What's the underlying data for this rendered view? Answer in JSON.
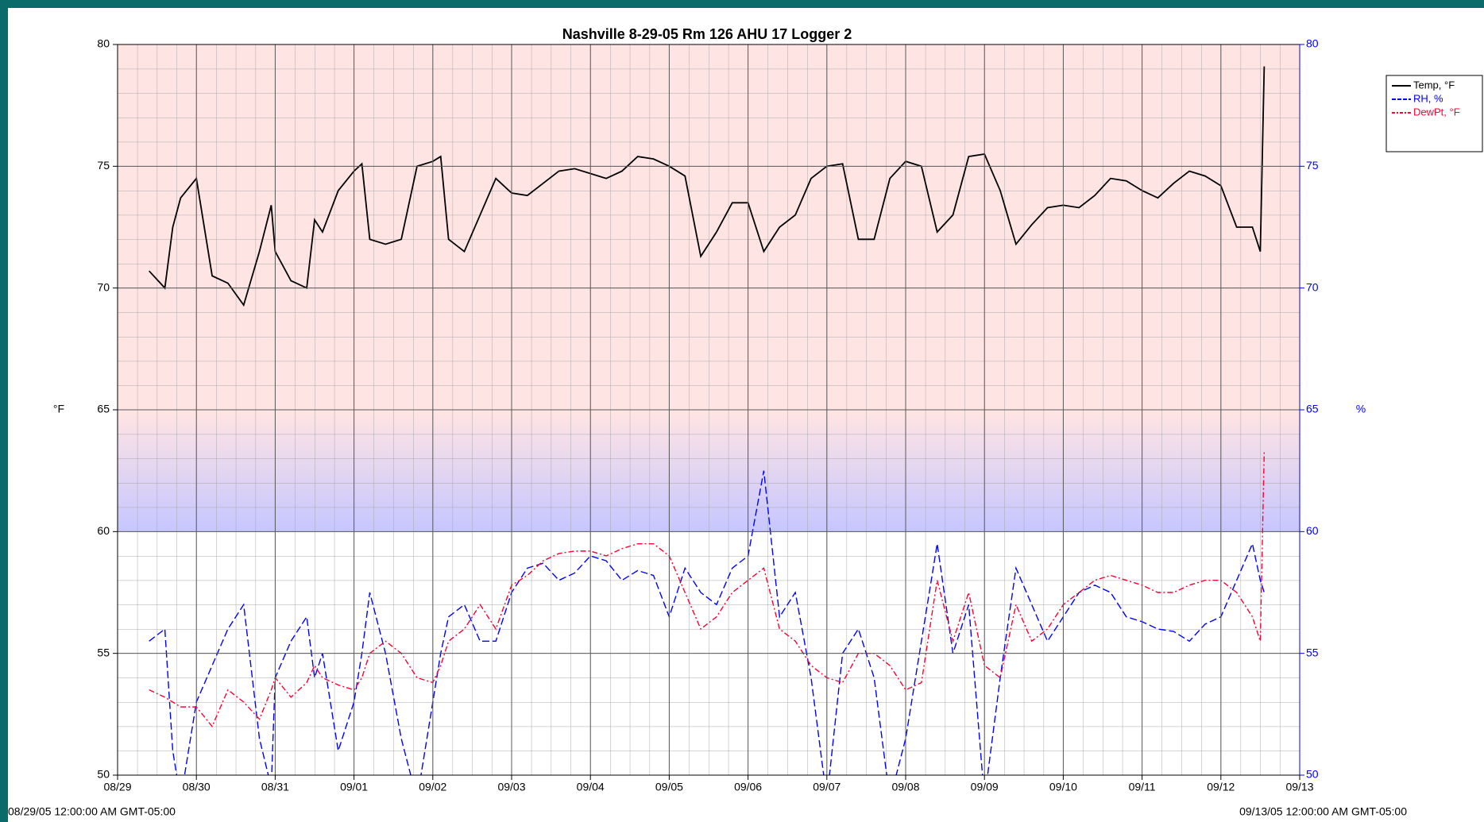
{
  "chart_data": {
    "type": "line",
    "title": "Nashville 8-29-05 Rm 126 AHU 17 Logger 2",
    "ylabel": "°F",
    "y2label": "%",
    "start_label": "08/29/05 12:00:00 AM GMT-05:00",
    "end_label": "09/13/05 12:00:00 AM GMT-05:00",
    "x": [
      0.4,
      0.6,
      0.7,
      0.8,
      1.0,
      1.2,
      1.4,
      1.6,
      1.8,
      1.95,
      2.0,
      2.2,
      2.4,
      2.5,
      2.6,
      2.8,
      3.0,
      3.1,
      3.2,
      3.4,
      3.6,
      3.8,
      4.0,
      4.1,
      4.2,
      4.4,
      4.6,
      4.8,
      5.0,
      5.2,
      5.4,
      5.6,
      5.8,
      6.0,
      6.2,
      6.4,
      6.6,
      6.8,
      7.0,
      7.2,
      7.4,
      7.6,
      7.8,
      8.0,
      8.2,
      8.4,
      8.6,
      8.8,
      9.0,
      9.2,
      9.4,
      9.6,
      9.8,
      10.0,
      10.2,
      10.4,
      10.6,
      10.8,
      11.0,
      11.2,
      11.4,
      11.6,
      11.8,
      12.0,
      12.2,
      12.4,
      12.6,
      12.8,
      13.0,
      13.2,
      13.4,
      13.6,
      13.8,
      14.0,
      14.2,
      14.4,
      14.5,
      14.55
    ],
    "series": [
      {
        "name": "Temp, °F",
        "color": "#000000",
        "style": "solid",
        "values": [
          70.7,
          70.0,
          72.5,
          73.7,
          74.5,
          70.5,
          70.2,
          69.3,
          71.5,
          73.4,
          71.5,
          70.3,
          70.0,
          72.8,
          72.3,
          74.0,
          74.8,
          75.1,
          72.0,
          71.8,
          72.0,
          75.0,
          75.2,
          75.4,
          72.0,
          71.5,
          73.0,
          74.5,
          73.9,
          73.8,
          74.3,
          74.8,
          74.9,
          74.7,
          74.5,
          74.8,
          75.4,
          75.3,
          75.0,
          74.6,
          71.3,
          72.3,
          73.5,
          73.5,
          71.5,
          72.5,
          73.0,
          74.5,
          75.0,
          75.1,
          72.0,
          72.0,
          74.5,
          75.2,
          75.0,
          72.3,
          73.0,
          75.4,
          75.5,
          74.0,
          71.8,
          72.6,
          73.3,
          73.4,
          73.3,
          73.8,
          74.5,
          74.4,
          74.0,
          73.7,
          74.3,
          74.8,
          74.6,
          74.2,
          72.5,
          72.5,
          71.5,
          79.1
        ]
      },
      {
        "name": "RH, %",
        "color": "#0000ff",
        "style": "dashed",
        "axis": "y2",
        "values": [
          55.5,
          56.0,
          51.0,
          49.0,
          53.0,
          54.5,
          56.0,
          57.0,
          51.5,
          49.5,
          54.0,
          55.5,
          56.5,
          54.0,
          55.0,
          51.0,
          53.0,
          55.0,
          57.5,
          55.0,
          51.5,
          49.0,
          53.0,
          55.0,
          56.5,
          57.0,
          55.5,
          55.5,
          57.5,
          58.5,
          58.7,
          58.0,
          58.3,
          59.0,
          58.8,
          58.0,
          58.4,
          58.2,
          56.5,
          58.5,
          57.5,
          57.0,
          58.5,
          59.0,
          62.5,
          56.5,
          57.5,
          54.0,
          49.0,
          55.0,
          56.0,
          54.0,
          49.0,
          51.5,
          55.5,
          59.5,
          55.0,
          57.0,
          49.0,
          54.0,
          58.5,
          57.0,
          55.5,
          56.5,
          57.5,
          57.8,
          57.5,
          56.5,
          56.3,
          56.0,
          55.9,
          55.5,
          56.2,
          56.5,
          58.0,
          59.5,
          58.0,
          57.5
        ]
      },
      {
        "name": "DewPt, °F",
        "color": "#ff0033",
        "style": "dashdot",
        "values": [
          53.5,
          53.2,
          53.0,
          52.8,
          52.8,
          52.0,
          53.5,
          53.0,
          52.3,
          53.5,
          54.0,
          53.2,
          53.8,
          54.5,
          54.0,
          53.7,
          53.5,
          54.0,
          55.0,
          55.5,
          55.0,
          54.0,
          53.8,
          54.5,
          55.5,
          56.0,
          57.0,
          56.0,
          57.8,
          58.2,
          58.8,
          59.1,
          59.2,
          59.2,
          59.0,
          59.3,
          59.5,
          59.5,
          59.0,
          57.5,
          56.0,
          56.5,
          57.5,
          58.0,
          58.5,
          56.0,
          55.5,
          54.5,
          54.0,
          53.8,
          55.0,
          55.0,
          54.5,
          53.5,
          53.8,
          58.0,
          55.5,
          57.5,
          54.5,
          54.0,
          57.0,
          55.5,
          56.0,
          57.0,
          57.5,
          58.0,
          58.2,
          58.0,
          57.8,
          57.5,
          57.5,
          57.8,
          58.0,
          58.0,
          57.5,
          56.5,
          55.5,
          63.3
        ]
      }
    ],
    "xlim": [
      0,
      15
    ],
    "xticks": [
      {
        "value": 0,
        "label": "08/29"
      },
      {
        "value": 1,
        "label": "08/30"
      },
      {
        "value": 2,
        "label": "08/31"
      },
      {
        "value": 3,
        "label": "09/01"
      },
      {
        "value": 4,
        "label": "09/02"
      },
      {
        "value": 5,
        "label": "09/03"
      },
      {
        "value": 6,
        "label": "09/04"
      },
      {
        "value": 7,
        "label": "09/05"
      },
      {
        "value": 8,
        "label": "09/06"
      },
      {
        "value": 9,
        "label": "09/07"
      },
      {
        "value": 10,
        "label": "09/08"
      },
      {
        "value": 11,
        "label": "09/09"
      },
      {
        "value": 12,
        "label": "09/10"
      },
      {
        "value": 13,
        "label": "09/11"
      },
      {
        "value": 14,
        "label": "09/12"
      },
      {
        "value": 15,
        "label": "09/13"
      }
    ],
    "ylim": [
      50,
      80
    ],
    "yticks": [
      50,
      55,
      60,
      65,
      70,
      75,
      80
    ],
    "y2lim": [
      50,
      80
    ],
    "y2ticks": [
      50,
      55,
      60,
      65,
      70,
      75,
      80
    ],
    "y2color": "#0000ff",
    "grid": true
  }
}
